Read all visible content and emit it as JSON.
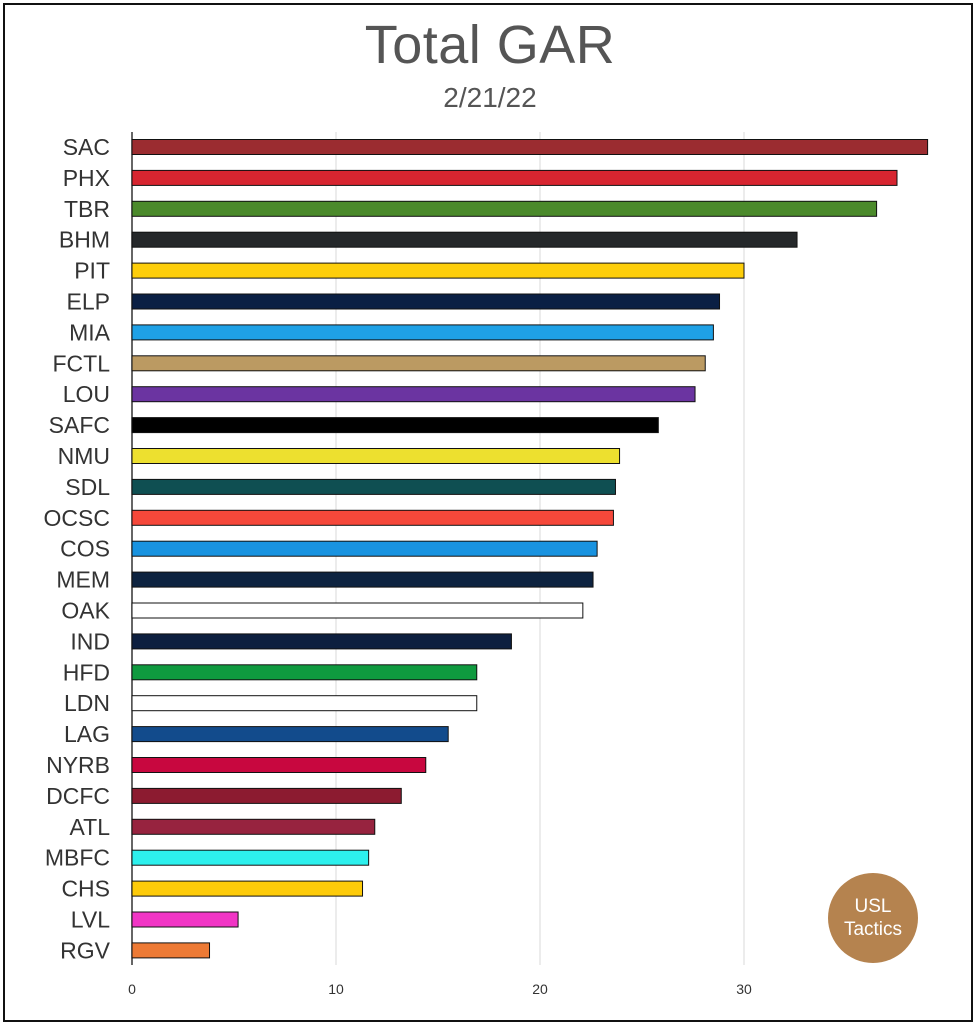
{
  "chart_data": {
    "type": "bar",
    "orientation": "horizontal",
    "title": "Total GAR",
    "subtitle": "2/21/22",
    "xlabel": "",
    "ylabel": "",
    "xlim": [
      0,
      39
    ],
    "xticks": [
      0,
      10,
      20,
      30
    ],
    "grid": true,
    "categories": [
      "SAC",
      "PHX",
      "TBR",
      "BHM",
      "PIT",
      "ELP",
      "MIA",
      "FCTL",
      "LOU",
      "SAFC",
      "NMU",
      "SDL",
      "OCSC",
      "COS",
      "MEM",
      "OAK",
      "IND",
      "HFD",
      "LDN",
      "LAG",
      "NYRB",
      "DCFC",
      "ATL",
      "MBFC",
      "CHS",
      "LVL",
      "RGV"
    ],
    "values": [
      39.0,
      37.5,
      36.5,
      32.6,
      30.0,
      28.8,
      28.5,
      28.1,
      27.6,
      25.8,
      23.9,
      23.7,
      23.6,
      22.8,
      22.6,
      22.1,
      18.6,
      16.9,
      16.9,
      15.5,
      14.4,
      13.2,
      11.9,
      11.6,
      11.3,
      5.2,
      3.8
    ],
    "colors": [
      "#9b2c30",
      "#d72530",
      "#4b8a2b",
      "#25282a",
      "#fdce0b",
      "#0a1f44",
      "#1fa1e6",
      "#bb9a62",
      "#6b34a1",
      "#000000",
      "#ede02f",
      "#0f4f52",
      "#f5483a",
      "#1993e0",
      "#0d2340",
      "#ffffff",
      "#0d1f3f",
      "#0f9a3f",
      "#ffffff",
      "#124b8c",
      "#c8073f",
      "#8c1b30",
      "#97233f",
      "#2df0ed",
      "#fdcb0a",
      "#f135c5",
      "#ed7a35"
    ]
  },
  "badge": {
    "line1": "USL",
    "line2": "Tactics",
    "color": "#b5834f"
  }
}
